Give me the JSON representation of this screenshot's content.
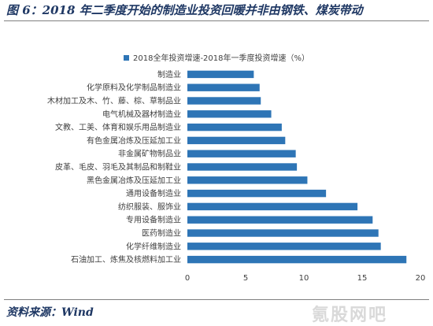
{
  "figure": {
    "title": "图 6：2018 年二季度开始的制造业投资回暖并非由钢铁、煤炭带动",
    "source": "资料来源：Wind",
    "watermark": "氪股网吧"
  },
  "colors": {
    "bar": "#2e75b6",
    "title": "#1f3864",
    "label": "#404040"
  },
  "chart_data": {
    "type": "bar",
    "orientation": "horizontal",
    "categories": [
      "制造业",
      "化学原料及化学制品制造业",
      "木材加工及木、竹、藤、棕、草制品业",
      "电气机械及器材制造业",
      "文教、工美、体育和娱乐用品制造业",
      "有色金属冶炼及压延加工业",
      "非金属矿物制品业",
      "皮革、毛皮、羽毛及其制品和制鞋业",
      "黑色金属冶炼及压延加工业",
      "通用设备制造业",
      "纺织服装、服饰业",
      "专用设备制造业",
      "医药制造业",
      "化学纤维制造业",
      "石油加工、炼焦及核燃料加工业"
    ],
    "series": [
      {
        "name": "2018全年投资增速-2018年一季度投资增速（%）",
        "values": [
          5.7,
          6.2,
          6.3,
          7.2,
          8.1,
          8.4,
          9.3,
          9.4,
          10.3,
          11.9,
          14.6,
          15.9,
          16.4,
          16.6,
          18.8
        ]
      }
    ],
    "xlim": [
      0,
      20
    ],
    "xticks": [
      0,
      5,
      10,
      15,
      20
    ],
    "legend_position": "top",
    "grid": false
  }
}
